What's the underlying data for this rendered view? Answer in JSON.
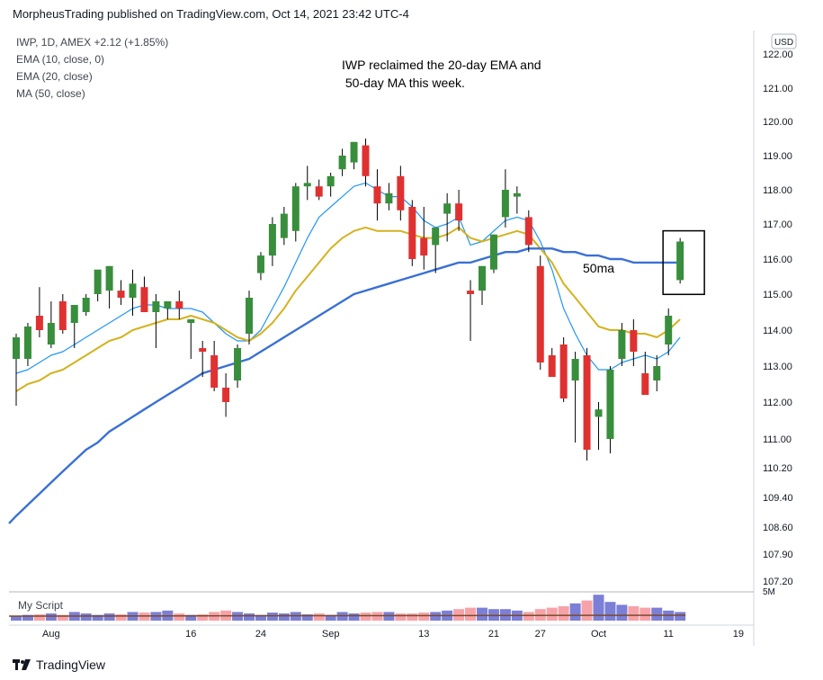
{
  "header": {
    "publisher_line": "MorpheusTrading published on TradingView.com, Oct 14, 2021 23:42 UTC-4"
  },
  "legend": {
    "symbol_line": "IWP, 1D, AMEX  +2.12 (+1.85%)",
    "ema10": "EMA (10, close, 0)",
    "ema20": "EMA (20, close)",
    "ma50": "MA (50, close)"
  },
  "currency_badge": "USD",
  "annotation_text": [
    "IWP reclaimed the 20-day EMA and",
    " 50-day MA this week."
  ],
  "ma_label": "50ma",
  "indicator_label": "My Script",
  "indicator_axis_label": "5M",
  "footer": {
    "brand": "TradingView"
  },
  "colors": {
    "up": "#388e3c",
    "down": "#e03131",
    "ema10": "#2196f3",
    "ema20": "#d4b21f",
    "ma50": "#3a70d4",
    "vol_up": "#7b7fd6",
    "vol_down": "#f7a2a8"
  },
  "chart_data": {
    "type": "candlestick",
    "title": "",
    "y_ticks": [
      "122.00",
      "121.00",
      "120.00",
      "119.00",
      "118.00",
      "117.00",
      "116.00",
      "115.00",
      "114.00",
      "113.00",
      "112.00",
      "111.00",
      "110.20",
      "109.40",
      "108.60",
      "107.90",
      "107.20"
    ],
    "x_ticks": [
      {
        "label": "Aug",
        "index": 3
      },
      {
        "label": "16",
        "index": 15
      },
      {
        "label": "24",
        "index": 21
      },
      {
        "label": "Sep",
        "index": 27
      },
      {
        "label": "13",
        "index": 35
      },
      {
        "label": "21",
        "index": 41
      },
      {
        "label": "27",
        "index": 45
      },
      {
        "label": "Oct",
        "index": 50
      },
      {
        "label": "11",
        "index": 56
      },
      {
        "label": "19",
        "index": 62
      }
    ],
    "ylim": [
      107.0,
      122.5
    ],
    "candles": [
      {
        "o": 113.2,
        "h": 113.9,
        "l": 111.9,
        "c": 113.8
      },
      {
        "o": 113.2,
        "h": 114.2,
        "l": 113.0,
        "c": 114.1
      },
      {
        "o": 114.4,
        "h": 115.2,
        "l": 113.8,
        "c": 114.0
      },
      {
        "o": 113.6,
        "h": 114.8,
        "l": 113.5,
        "c": 114.2
      },
      {
        "o": 114.8,
        "h": 115.0,
        "l": 113.9,
        "c": 114.0
      },
      {
        "o": 114.2,
        "h": 114.6,
        "l": 113.5,
        "c": 114.7
      },
      {
        "o": 114.5,
        "h": 115.0,
        "l": 114.4,
        "c": 114.9
      },
      {
        "o": 115.0,
        "h": 115.6,
        "l": 114.8,
        "c": 115.7
      },
      {
        "o": 115.1,
        "h": 115.8,
        "l": 114.6,
        "c": 115.8
      },
      {
        "o": 115.1,
        "h": 115.4,
        "l": 114.7,
        "c": 114.9
      },
      {
        "o": 114.9,
        "h": 115.7,
        "l": 114.4,
        "c": 115.3
      },
      {
        "o": 115.2,
        "h": 115.5,
        "l": 114.5,
        "c": 114.5
      },
      {
        "o": 114.5,
        "h": 115.0,
        "l": 113.5,
        "c": 114.8
      },
      {
        "o": 114.6,
        "h": 114.8,
        "l": 114.3,
        "c": 114.8
      },
      {
        "o": 114.8,
        "h": 115.1,
        "l": 114.3,
        "c": 114.6
      },
      {
        "o": 114.2,
        "h": 114.3,
        "l": 113.2,
        "c": 114.3
      },
      {
        "o": 113.5,
        "h": 113.7,
        "l": 112.7,
        "c": 113.4
      },
      {
        "o": 113.3,
        "h": 113.7,
        "l": 112.3,
        "c": 112.4
      },
      {
        "o": 112.4,
        "h": 112.8,
        "l": 111.6,
        "c": 112.0
      },
      {
        "o": 112.6,
        "h": 113.6,
        "l": 112.4,
        "c": 113.5
      },
      {
        "o": 113.9,
        "h": 115.1,
        "l": 113.6,
        "c": 114.9
      },
      {
        "o": 115.6,
        "h": 116.2,
        "l": 115.4,
        "c": 116.1
      },
      {
        "o": 116.1,
        "h": 117.2,
        "l": 115.8,
        "c": 117.0
      },
      {
        "o": 116.6,
        "h": 117.5,
        "l": 116.4,
        "c": 117.3
      },
      {
        "o": 116.8,
        "h": 118.2,
        "l": 116.5,
        "c": 118.1
      },
      {
        "o": 118.1,
        "h": 118.7,
        "l": 117.7,
        "c": 118.2
      },
      {
        "o": 118.1,
        "h": 118.3,
        "l": 117.7,
        "c": 117.8
      },
      {
        "o": 118.1,
        "h": 118.5,
        "l": 117.8,
        "c": 118.4
      },
      {
        "o": 118.6,
        "h": 119.2,
        "l": 118.4,
        "c": 119.0
      },
      {
        "o": 118.8,
        "h": 119.4,
        "l": 118.6,
        "c": 119.4
      },
      {
        "o": 119.3,
        "h": 119.5,
        "l": 118.1,
        "c": 118.4
      },
      {
        "o": 118.1,
        "h": 118.6,
        "l": 117.1,
        "c": 117.6
      },
      {
        "o": 117.6,
        "h": 118.2,
        "l": 117.4,
        "c": 117.9
      },
      {
        "o": 118.4,
        "h": 118.7,
        "l": 117.1,
        "c": 117.4
      },
      {
        "o": 117.5,
        "h": 117.7,
        "l": 115.8,
        "c": 116.0
      },
      {
        "o": 116.6,
        "h": 117.5,
        "l": 115.7,
        "c": 116.1
      },
      {
        "o": 116.4,
        "h": 116.9,
        "l": 115.6,
        "c": 116.9
      },
      {
        "o": 117.3,
        "h": 117.9,
        "l": 116.5,
        "c": 117.6
      },
      {
        "o": 117.6,
        "h": 118.0,
        "l": 116.8,
        "c": 117.1
      },
      {
        "o": 115.1,
        "h": 115.4,
        "l": 113.7,
        "c": 115.0
      },
      {
        "o": 115.1,
        "h": 115.8,
        "l": 114.7,
        "c": 115.8
      },
      {
        "o": 115.7,
        "h": 116.7,
        "l": 115.6,
        "c": 116.7
      },
      {
        "o": 117.2,
        "h": 118.6,
        "l": 116.9,
        "c": 118.0
      },
      {
        "o": 117.8,
        "h": 118.1,
        "l": 117.3,
        "c": 117.9
      },
      {
        "o": 117.2,
        "h": 117.4,
        "l": 116.2,
        "c": 116.4
      },
      {
        "o": 115.8,
        "h": 116.1,
        "l": 112.9,
        "c": 113.1
      },
      {
        "o": 113.3,
        "h": 113.5,
        "l": 112.7,
        "c": 112.7
      },
      {
        "o": 113.6,
        "h": 113.8,
        "l": 112.0,
        "c": 112.1
      },
      {
        "o": 112.6,
        "h": 113.4,
        "l": 110.9,
        "c": 113.2
      },
      {
        "o": 113.3,
        "h": 113.5,
        "l": 110.4,
        "c": 110.7
      },
      {
        "o": 111.6,
        "h": 112.0,
        "l": 110.7,
        "c": 111.8
      },
      {
        "o": 111.0,
        "h": 113.0,
        "l": 110.6,
        "c": 112.9
      },
      {
        "o": 113.2,
        "h": 114.2,
        "l": 113.0,
        "c": 114.0
      },
      {
        "o": 114.0,
        "h": 114.3,
        "l": 113.0,
        "c": 113.4
      },
      {
        "o": 112.8,
        "h": 113.4,
        "l": 112.3,
        "c": 112.2
      },
      {
        "o": 112.6,
        "h": 113.3,
        "l": 112.3,
        "c": 113.0
      },
      {
        "o": 113.6,
        "h": 114.6,
        "l": 113.3,
        "c": 114.4
      },
      {
        "o": 115.4,
        "h": 116.6,
        "l": 115.3,
        "c": 116.5
      }
    ],
    "series": [
      {
        "name": "EMA (10, close, 0)",
        "values": [
          112.8,
          112.9,
          113.1,
          113.3,
          113.4,
          113.6,
          113.8,
          114.0,
          114.2,
          114.4,
          114.6,
          114.7,
          114.7,
          114.6,
          114.6,
          114.6,
          114.5,
          114.2,
          113.9,
          113.7,
          113.7,
          114.0,
          114.6,
          115.2,
          115.9,
          116.6,
          117.2,
          117.5,
          117.8,
          118.1,
          118.2,
          118.0,
          117.8,
          117.8,
          117.5,
          117.1,
          116.9,
          117.0,
          117.2,
          116.4,
          116.5,
          116.8,
          117.1,
          117.2,
          117.1,
          116.5,
          115.7,
          114.6,
          113.9,
          113.3,
          112.9,
          112.9,
          113.1,
          113.2,
          113.3,
          113.2,
          113.4,
          113.8
        ]
      },
      {
        "name": "EMA (20, close)",
        "values": [
          112.3,
          112.5,
          112.6,
          112.8,
          112.9,
          113.1,
          113.3,
          113.5,
          113.7,
          113.8,
          114.0,
          114.1,
          114.2,
          114.3,
          114.3,
          114.4,
          114.3,
          114.2,
          114.0,
          113.8,
          113.7,
          113.9,
          114.2,
          114.6,
          115.1,
          115.5,
          115.9,
          116.3,
          116.6,
          116.8,
          116.9,
          116.8,
          116.8,
          116.8,
          116.7,
          116.6,
          116.6,
          116.7,
          116.9,
          116.6,
          116.5,
          116.6,
          116.7,
          116.8,
          116.7,
          116.3,
          115.9,
          115.3,
          114.9,
          114.5,
          114.1,
          114.0,
          114.0,
          113.9,
          113.9,
          113.8,
          114.0,
          114.3
        ]
      },
      {
        "name": "MA (50, close)",
        "values": [
          108.9,
          109.2,
          109.5,
          109.8,
          110.1,
          110.4,
          110.7,
          110.9,
          111.2,
          111.4,
          111.6,
          111.8,
          112.0,
          112.2,
          112.4,
          112.6,
          112.8,
          112.9,
          113.0,
          113.1,
          113.2,
          113.4,
          113.6,
          113.8,
          114.0,
          114.2,
          114.4,
          114.6,
          114.8,
          115.0,
          115.1,
          115.2,
          115.3,
          115.4,
          115.5,
          115.6,
          115.7,
          115.8,
          115.9,
          115.9,
          116.0,
          116.1,
          116.2,
          116.2,
          116.3,
          116.3,
          116.3,
          116.2,
          116.2,
          116.1,
          116.1,
          116.0,
          116.0,
          115.9,
          115.9,
          115.9,
          115.9,
          115.9
        ]
      }
    ],
    "volume_bars": [
      0.15,
      0.2,
      0.22,
      0.25,
      0.2,
      0.3,
      0.25,
      0.2,
      0.25,
      0.22,
      0.3,
      0.28,
      0.3,
      0.35,
      0.25,
      0.2,
      0.22,
      0.3,
      0.35,
      0.3,
      0.25,
      0.2,
      0.28,
      0.25,
      0.3,
      0.22,
      0.25,
      0.2,
      0.3,
      0.25,
      0.28,
      0.3,
      0.3,
      0.25,
      0.25,
      0.28,
      0.3,
      0.35,
      0.4,
      0.45,
      0.45,
      0.4,
      0.4,
      0.35,
      0.3,
      0.4,
      0.45,
      0.5,
      0.6,
      0.7,
      0.9,
      0.65,
      0.55,
      0.5,
      0.45,
      0.45,
      0.35,
      0.3
    ]
  }
}
